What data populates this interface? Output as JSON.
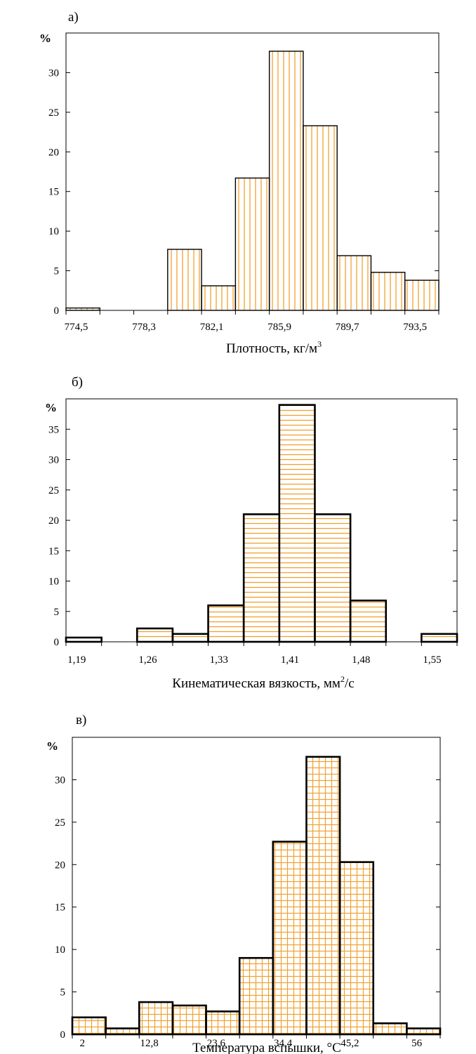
{
  "chart_data": [
    {
      "type": "bar",
      "panel_label": "а)",
      "ylabel": "%",
      "xlabel": "Плотность, кг/м",
      "xlabel_sup": "3",
      "ylim": [
        0,
        35
      ],
      "yticks": [
        0,
        5,
        10,
        15,
        20,
        25,
        30
      ],
      "xtick_labels": [
        "774,5",
        "778,3",
        "782,1",
        "785,9",
        "789,7",
        "793,5"
      ],
      "values": [
        0.3,
        0,
        0,
        7.7,
        3.1,
        16.7,
        32.7,
        23.3,
        6.9,
        4.8,
        3.8
      ],
      "hatch": "vertical",
      "grid": false
    },
    {
      "type": "bar",
      "panel_label": "б)",
      "ylabel": "%",
      "xlabel": "Кинематическая вязкость, мм",
      "xlabel_sup": "2",
      "xlabel_tail": "/с",
      "ylim": [
        0,
        40
      ],
      "yticks": [
        0,
        5,
        10,
        15,
        20,
        25,
        30,
        35
      ],
      "xtick_labels": [
        "1,19",
        "1,26",
        "1,33",
        "1,41",
        "1,48",
        "1,55"
      ],
      "values": [
        0.7,
        0,
        2.2,
        1.3,
        6,
        21,
        39,
        21,
        6.8,
        0,
        1.3
      ],
      "hatch": "horizontal",
      "grid": false
    },
    {
      "type": "bar",
      "panel_label": "в)",
      "ylabel": "%",
      "xlabel": "Температура вспышки, °С",
      "ylim": [
        0,
        35
      ],
      "yticks": [
        0,
        5,
        10,
        15,
        20,
        25,
        30
      ],
      "xtick_labels": [
        "2",
        "12,8",
        "23,6",
        "34,4",
        "45,2",
        "56"
      ],
      "values": [
        2,
        0.7,
        3.8,
        3.4,
        2.7,
        9,
        22.7,
        32.7,
        20.3,
        1.3,
        0.7
      ],
      "hatch": "grid",
      "grid": false
    }
  ],
  "colors": {
    "hatch": "#f0a030",
    "outline": "#000000",
    "background": "#ffffff"
  }
}
